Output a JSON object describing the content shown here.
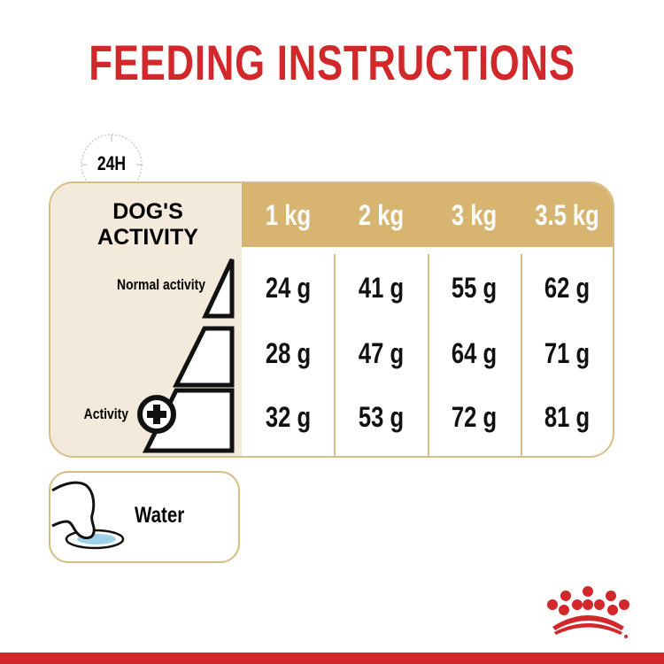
{
  "title": "FEEDING INSTRUCTIONS",
  "clock_label": "24H",
  "table": {
    "activity_header": "DOG'S ACTIVITY",
    "activity_levels": [
      "Normal activity",
      "",
      "Activity"
    ],
    "columns": [
      "1 kg",
      "2 kg",
      "3 kg",
      "3.5 kg"
    ],
    "rows": [
      [
        "24 g",
        "41 g",
        "55 g",
        "62 g"
      ],
      [
        "28 g",
        "47 g",
        "64 g",
        "71 g"
      ],
      [
        "32 g",
        "53 g",
        "72 g",
        "81 g"
      ]
    ]
  },
  "water_label": "Water",
  "colors": {
    "brand_red": "#d2282b",
    "gold": "#d7b571",
    "beige": "#f4eadb",
    "water": "#9fd0ec"
  }
}
